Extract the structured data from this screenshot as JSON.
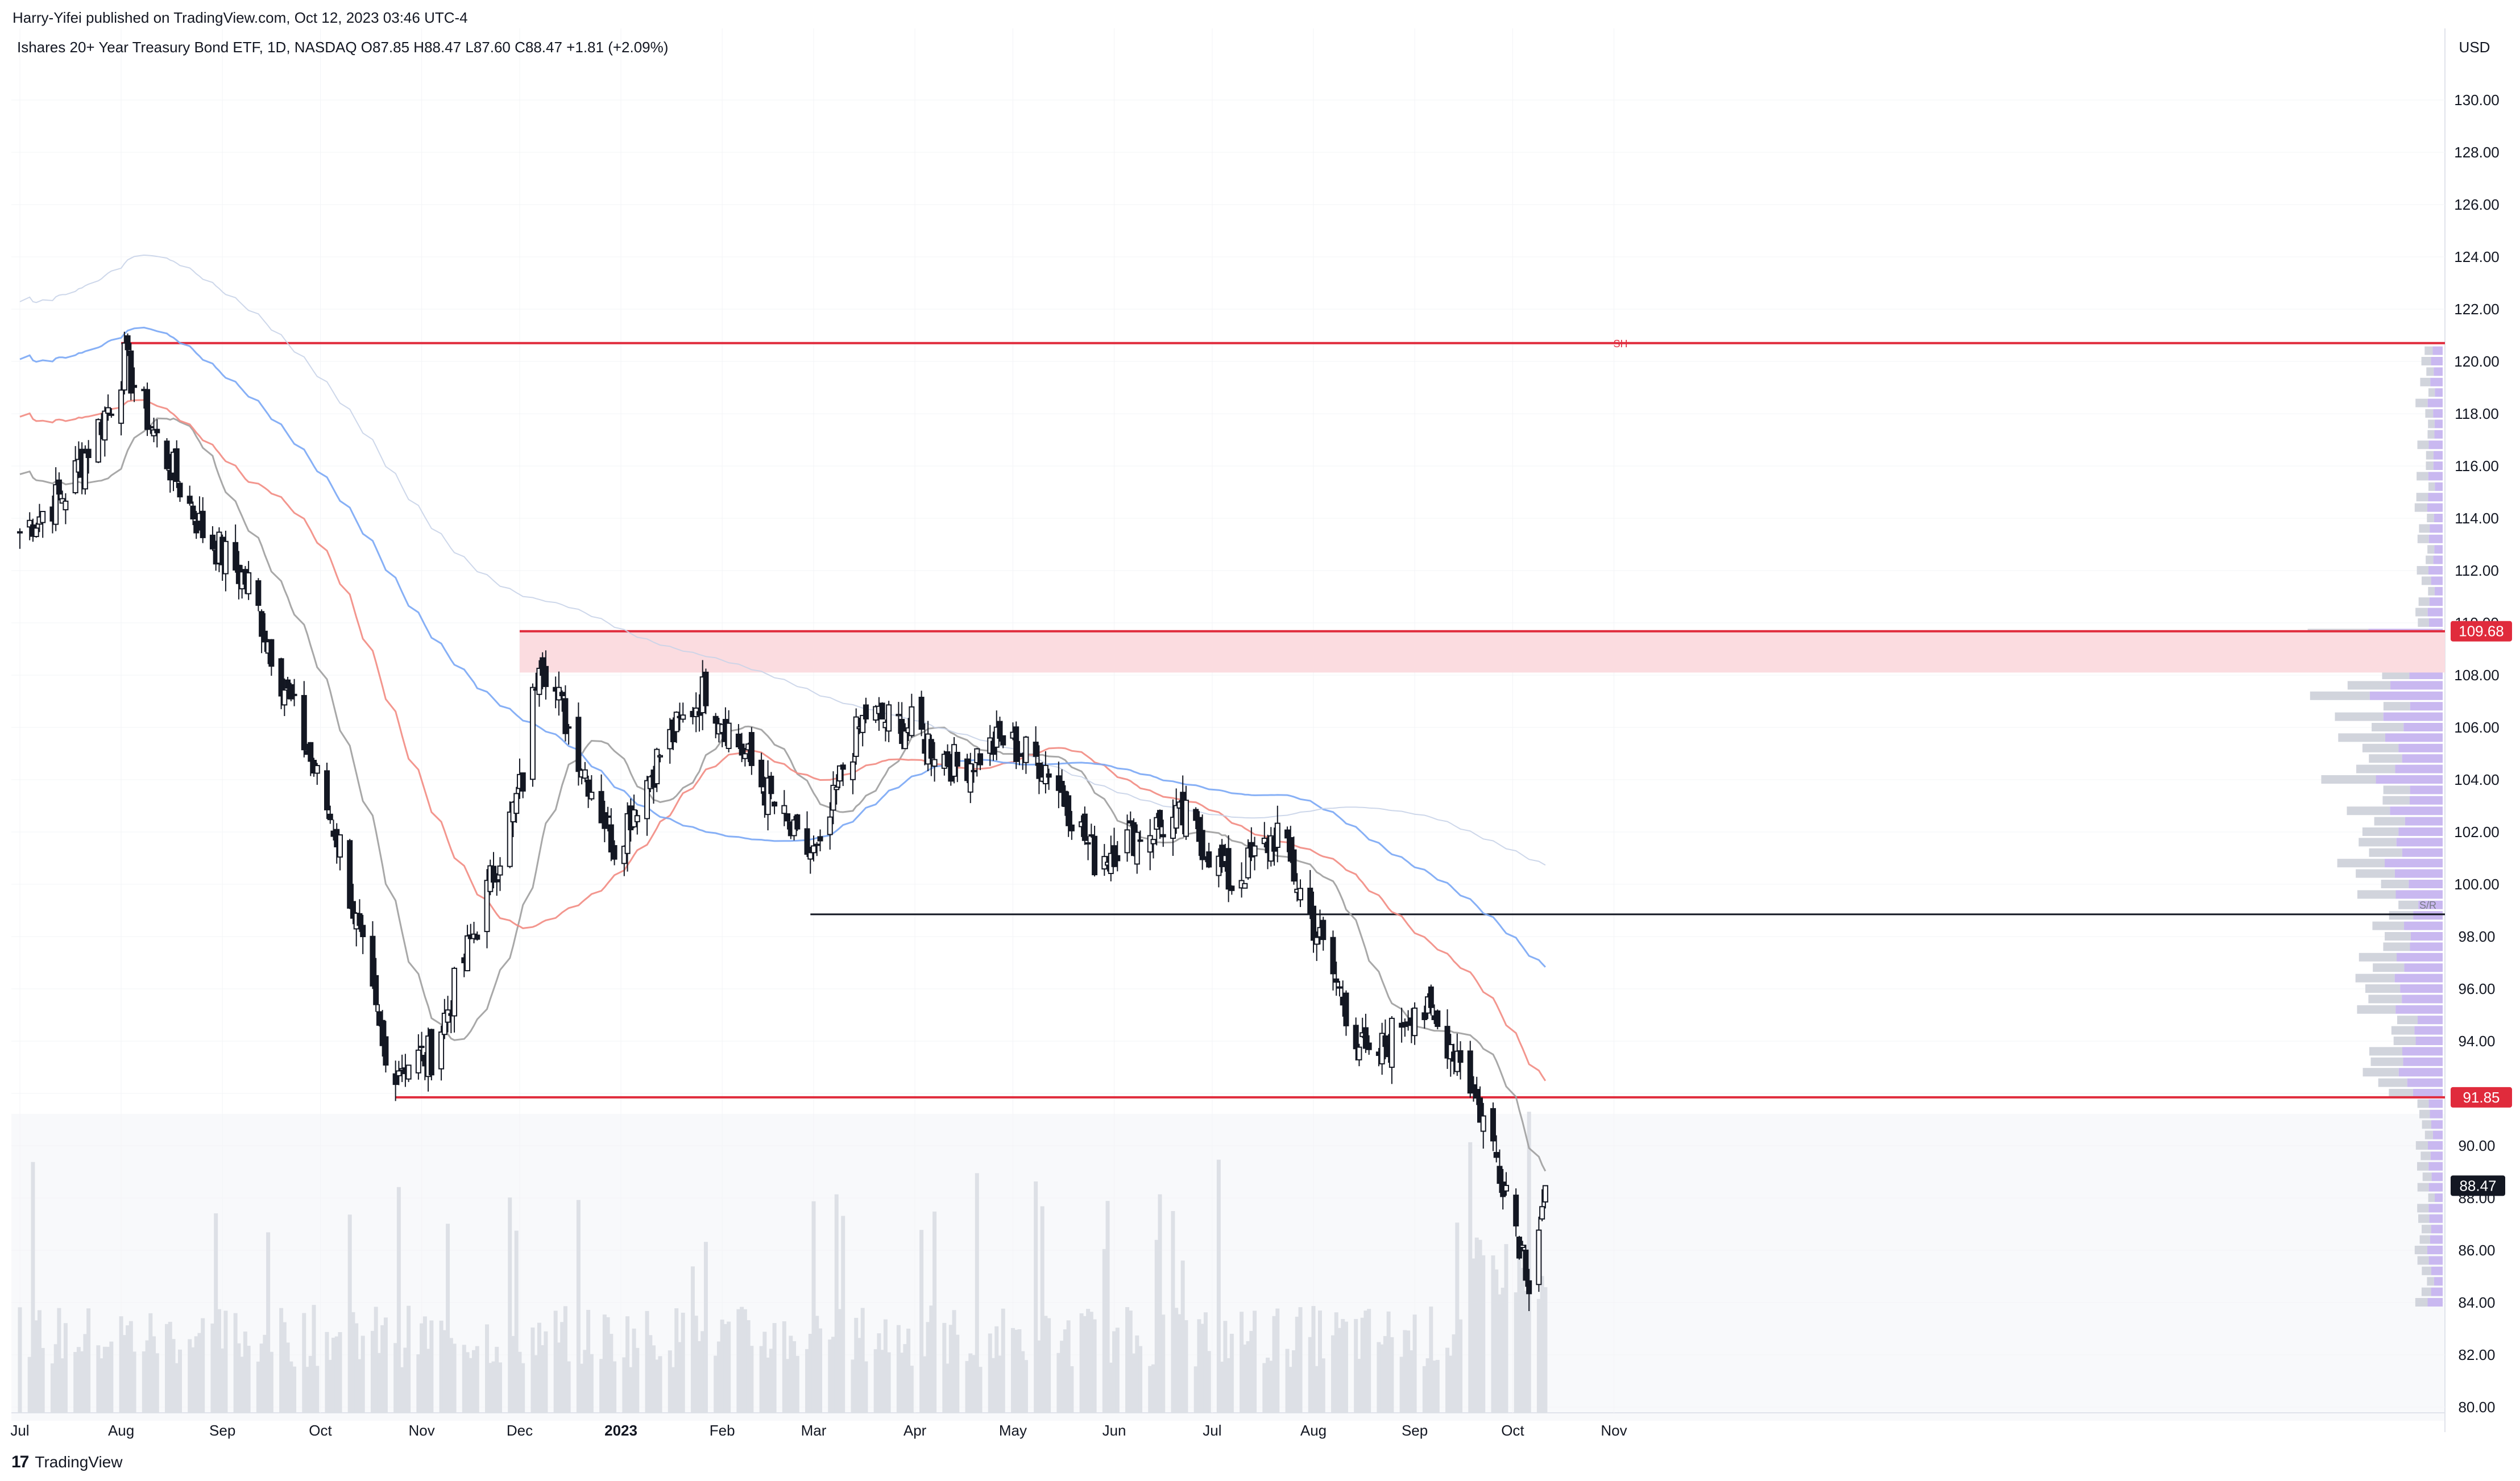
{
  "header": {
    "published": "Harry-Yifei published on TradingView.com, Oct 12, 2023 03:46 UTC-4",
    "symbol_line": "Ishares 20+ Year Treasury Bond ETF, 1D, NASDAQ  O87.85  H88.47  L87.60  C88.47  +1.81 (+2.09%)"
  },
  "price_axis": {
    "currency": "USD",
    "ticks": [
      "130.00",
      "128.00",
      "126.00",
      "124.00",
      "122.00",
      "120.00",
      "118.00",
      "116.00",
      "114.00",
      "112.00",
      "110.00",
      "108.00",
      "106.00",
      "104.00",
      "102.00",
      "100.00",
      "98.00",
      "96.00",
      "94.00",
      "92.00",
      "90.00",
      "88.00",
      "86.00",
      "84.00",
      "82.00",
      "80.00"
    ],
    "label_resistance": "109.68",
    "label_support": "91.85",
    "label_last": "88.47"
  },
  "time_axis": {
    "labels": [
      "Jul",
      "Aug",
      "Sep",
      "Oct",
      "Nov",
      "Dec",
      "2023",
      "Feb",
      "Mar",
      "Apr",
      "May",
      "Jun",
      "Jul",
      "Aug",
      "Sep",
      "Oct",
      "Nov"
    ]
  },
  "annotations": {
    "swing_high_label": "SH",
    "sr_label": "S/R"
  },
  "brand": {
    "logo": "17",
    "name": "TradingView"
  },
  "chart_data": {
    "type": "candlestick",
    "symbol": "Ishares 20+ Year Treasury Bond ETF",
    "interval": "1D",
    "exchange": "NASDAQ",
    "last_bar": {
      "open": 87.85,
      "high": 88.47,
      "low": 87.6,
      "close": 88.47,
      "change": 1.81,
      "change_pct": 2.09
    },
    "x_range": [
      "2022-07-01",
      "2023-11-30"
    ],
    "ylim": [
      79.5,
      131.5
    ],
    "levels": [
      {
        "name": "SH",
        "price": 120.7,
        "start": "2022-08-01",
        "color": "#e02b3c"
      },
      {
        "name": "resistance-zone",
        "price": 109.68,
        "bottom": 108.1,
        "start": "2022-12-01",
        "color": "#e02b3c"
      },
      {
        "name": "S/R",
        "price": 98.85,
        "start": "2023-02-28",
        "color": "#131722"
      },
      {
        "name": "support",
        "price": 91.85,
        "start": "2022-10-24",
        "color": "#e02b3c"
      }
    ],
    "anchors": [
      [
        "2022-07-01",
        113.5
      ],
      [
        "2022-07-15",
        115.0
      ],
      [
        "2022-07-29",
        118.5
      ],
      [
        "2022-08-02",
        120.0
      ],
      [
        "2022-08-12",
        117.0
      ],
      [
        "2022-08-26",
        113.5
      ],
      [
        "2022-09-09",
        111.5
      ],
      [
        "2022-09-23",
        106.5
      ],
      [
        "2022-10-07",
        101.5
      ],
      [
        "2022-10-21",
        93.0
      ],
      [
        "2022-11-04",
        93.5
      ],
      [
        "2022-11-18",
        98.5
      ],
      [
        "2022-12-02",
        104.0
      ],
      [
        "2022-12-07",
        109.0
      ],
      [
        "2022-12-16",
        106.0
      ],
      [
        "2022-12-30",
        101.5
      ],
      [
        "2023-01-13",
        105.0
      ],
      [
        "2023-01-27",
        107.5
      ],
      [
        "2023-02-10",
        104.5
      ],
      [
        "2023-02-24",
        101.5
      ],
      [
        "2023-03-03",
        101.0
      ],
      [
        "2023-03-10",
        104.5
      ],
      [
        "2023-03-17",
        106.5
      ],
      [
        "2023-03-31",
        106.0
      ],
      [
        "2023-04-14",
        104.5
      ],
      [
        "2023-04-28",
        105.5
      ],
      [
        "2023-05-12",
        104.5
      ],
      [
        "2023-05-26",
        101.0
      ],
      [
        "2023-06-09",
        102.0
      ],
      [
        "2023-06-23",
        102.5
      ],
      [
        "2023-07-07",
        100.0
      ],
      [
        "2023-07-21",
        102.0
      ],
      [
        "2023-08-04",
        97.5
      ],
      [
        "2023-08-18",
        93.0
      ],
      [
        "2023-09-01",
        95.5
      ],
      [
        "2023-09-15",
        93.5
      ],
      [
        "2023-09-29",
        88.5
      ],
      [
        "2023-10-06",
        85.0
      ],
      [
        "2023-10-11",
        88.47
      ]
    ],
    "moving_averages": [
      {
        "name": "MA fast",
        "color": "#9e9e9e"
      },
      {
        "name": "MA mid",
        "color": "#f28b82"
      },
      {
        "name": "MA slow",
        "color": "#7aa7f5"
      },
      {
        "name": "MA long",
        "color": "#c8d3e8"
      }
    ],
    "volume_profile": {
      "color_left": "#d1d4dc",
      "color_right": "#c9b8f0"
    }
  }
}
